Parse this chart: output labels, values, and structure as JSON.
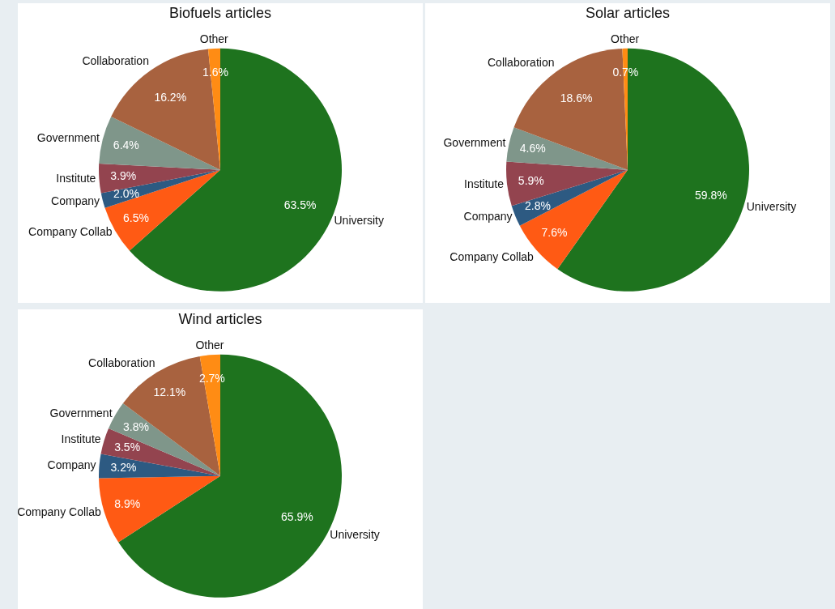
{
  "chart_data": [
    {
      "type": "pie",
      "title": "Biofuels articles",
      "categories": [
        "University",
        "Company Collab",
        "Company",
        "Institute",
        "Government",
        "Collaboration",
        "Other"
      ],
      "values": [
        63.5,
        6.5,
        2.0,
        3.9,
        6.4,
        16.2,
        1.6
      ],
      "value_labels": [
        "63.5%",
        "6.5%",
        "2.0%",
        "3.9%",
        "6.4%",
        "16.2%",
        "1.6%"
      ],
      "colors": [
        "#1e731e",
        "#ff5a14",
        "#2d5a82",
        "#93444f",
        "#7f968a",
        "#a8623f",
        "#ff8c14"
      ],
      "legend": false
    },
    {
      "type": "pie",
      "title": "Solar articles",
      "categories": [
        "University",
        "Company Collab",
        "Company",
        "Institute",
        "Government",
        "Collaboration",
        "Other"
      ],
      "values": [
        59.8,
        7.6,
        2.8,
        5.9,
        4.6,
        18.6,
        0.7
      ],
      "value_labels": [
        "59.8%",
        "7.6%",
        "2.8%",
        "5.9%",
        "4.6%",
        "18.6%",
        "0.7%"
      ],
      "colors": [
        "#1e731e",
        "#ff5a14",
        "#2d5a82",
        "#93444f",
        "#7f968a",
        "#a8623f",
        "#ff8c14"
      ],
      "legend": false
    },
    {
      "type": "pie",
      "title": "Wind articles",
      "categories": [
        "University",
        "Company Collab",
        "Company",
        "Institute",
        "Government",
        "Collaboration",
        "Other"
      ],
      "values": [
        65.9,
        8.9,
        3.2,
        3.5,
        3.8,
        12.1,
        2.7
      ],
      "value_labels": [
        "65.9%",
        "8.9%",
        "3.2%",
        "3.5%",
        "3.8%",
        "12.1%",
        "2.7%"
      ],
      "colors": [
        "#1e731e",
        "#ff5a14",
        "#2d5a82",
        "#93444f",
        "#7f968a",
        "#a8623f",
        "#ff8c14"
      ],
      "legend": false
    }
  ]
}
